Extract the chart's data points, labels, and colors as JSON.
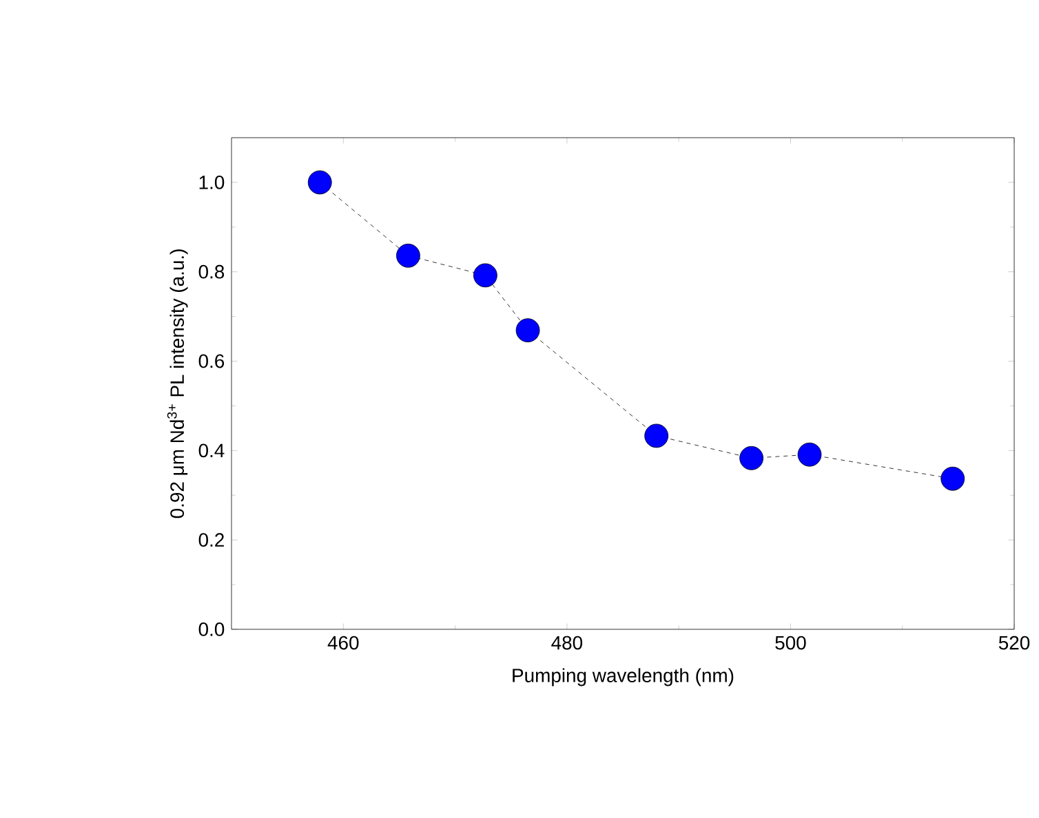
{
  "chart_data": {
    "type": "line",
    "xlabel": "Pumping wavelength (nm)",
    "ylabel": "0.92 μm Nd$^{3+}$ PL intensity (a.u.)",
    "x": [
      457.9,
      465.8,
      472.7,
      476.5,
      488.0,
      496.5,
      501.7,
      514.5
    ],
    "values": [
      1.0,
      0.836,
      0.792,
      0.669,
      0.433,
      0.383,
      0.391,
      0.337
    ],
    "color": "#0000ff",
    "marker": "circle",
    "line_style": "dashed",
    "xlim": [
      450,
      520
    ],
    "ylim": [
      0,
      1.1
    ],
    "xticks": [
      460,
      480,
      500,
      520
    ],
    "yticks": [
      {
        "value": 0,
        "label": "0.0"
      },
      {
        "value": 0.2,
        "label": "0.2"
      },
      {
        "value": 0.4,
        "label": "0.4"
      },
      {
        "value": 0.6,
        "label": "0.6"
      },
      {
        "value": 0.8,
        "label": "0.8"
      },
      {
        "value": 1.0,
        "label": "1.0"
      }
    ],
    "grid": false
  }
}
